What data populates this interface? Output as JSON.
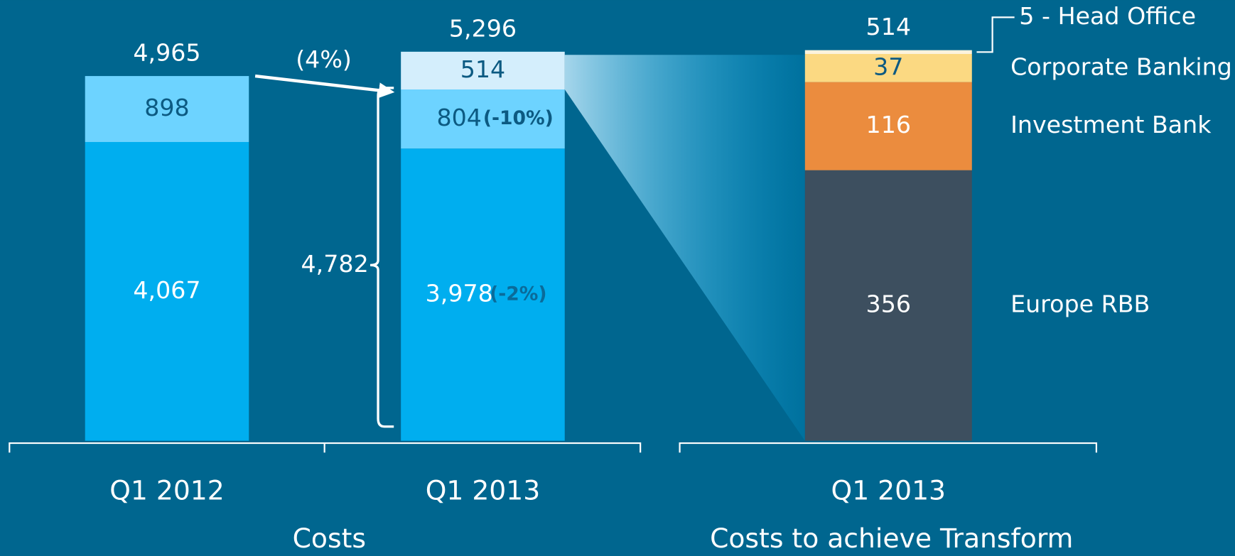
{
  "chart_data": [
    {
      "type": "stacked-bar",
      "title": "Costs",
      "categories": [
        "Q1 2012",
        "Q1 2013"
      ],
      "ylim": [
        0,
        6000
      ],
      "series": [
        {
          "color": "#00aeef",
          "text_color": "#ffffff",
          "values": [
            4067,
            3978
          ],
          "value_labels": [
            "4,067",
            "3,978"
          ],
          "changes": [
            null,
            "(-2%)"
          ],
          "change_color": "#0a6b9a"
        },
        {
          "color": "#6dd3ff",
          "text_color": "#0c5a82",
          "values": [
            898,
            804
          ],
          "changes": [
            null,
            "(-10%)"
          ],
          "change_color": "#0c5a82"
        },
        {
          "color": "#d4eefc",
          "text_color": "#0c5a82",
          "values": [
            null,
            514
          ]
        }
      ],
      "totals": [
        4965,
        5296
      ],
      "total_labels": [
        "4,965",
        "5,296"
      ],
      "change_label": "(4%)",
      "bracket": {
        "value": 4782,
        "label": "4,782"
      }
    },
    {
      "type": "stacked-bar",
      "title": "Costs to achieve Transform",
      "categories": [
        "Q1 2013"
      ],
      "ylim": [
        0,
        580
      ],
      "series": [
        {
          "name": "Europe RBB",
          "color": "#3d4f5f",
          "text_color": "#ffffff",
          "values": [
            356
          ]
        },
        {
          "name": "Investment Bank",
          "color": "#eb8c3e",
          "text_color": "#ffffff",
          "values": [
            116
          ]
        },
        {
          "name": "Corporate Banking",
          "color": "#fbd982",
          "text_color": "#0c5a82",
          "values": [
            37
          ]
        },
        {
          "name": "5 - Head Office",
          "color": "#fdf3dc",
          "values": [
            5
          ]
        }
      ],
      "totals": [
        514
      ]
    }
  ]
}
